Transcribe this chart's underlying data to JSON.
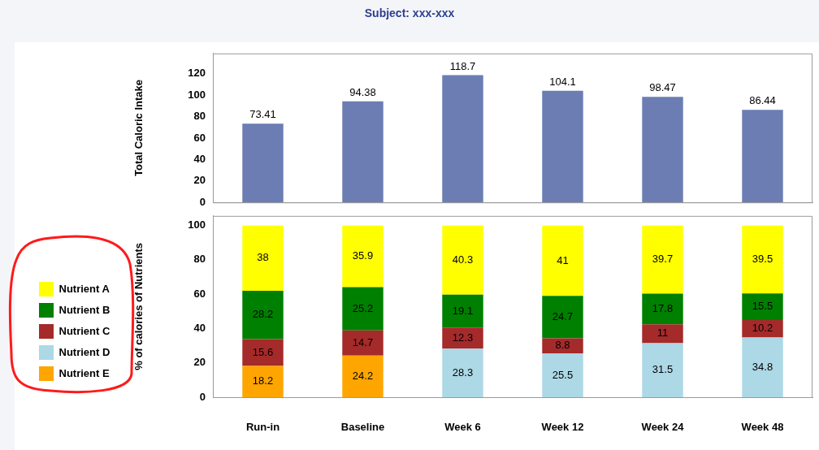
{
  "chart_data": [
    {
      "type": "bar",
      "title": "Subject: xxx-xxx",
      "ylabel": "Total Caloric Intake",
      "categories": [
        null,
        null,
        null,
        null,
        null,
        null
      ],
      "values": [
        73.41,
        94.38,
        118.7,
        104.1,
        98.47,
        86.44
      ],
      "color": "#6b7db3",
      "ylim": [
        0,
        139
      ],
      "yticks": [
        0,
        20,
        40,
        60,
        80,
        100,
        120
      ],
      "data_labels": true,
      "grid": false,
      "tick_labels": "y"
    },
    {
      "type": "bar",
      "stacked": true,
      "ylabel": "% of calories of Nutrients",
      "categories": [
        "Run-in",
        "Baseline",
        "Week 6",
        "Week 12",
        "Week 24",
        "Week 48"
      ],
      "series": [
        {
          "name": "Nutrient E",
          "color": "#ffa500",
          "values": [
            18.2,
            24.2,
            null,
            null,
            null,
            null
          ]
        },
        {
          "name": "Nutrient D",
          "color": "#add8e6",
          "values": [
            null,
            null,
            28.3,
            25.5,
            31.5,
            34.8
          ]
        },
        {
          "name": "Nutrient C",
          "color": "#a52a2a",
          "values": [
            15.6,
            14.7,
            12.3,
            8.8,
            11,
            10.2
          ]
        },
        {
          "name": "Nutrient B",
          "color": "#008000",
          "values": [
            28.2,
            25.2,
            19.1,
            24.7,
            17.8,
            15.5
          ]
        },
        {
          "name": "Nutrient A",
          "color": "#ffff00",
          "values": [
            38,
            35.9,
            40.3,
            41,
            39.7,
            39.5
          ]
        }
      ],
      "ylim": [
        0,
        105.6
      ],
      "yticks": [
        0,
        20,
        40,
        60,
        80,
        100
      ],
      "data_labels": true,
      "grid": false,
      "legend": "left"
    }
  ]
}
